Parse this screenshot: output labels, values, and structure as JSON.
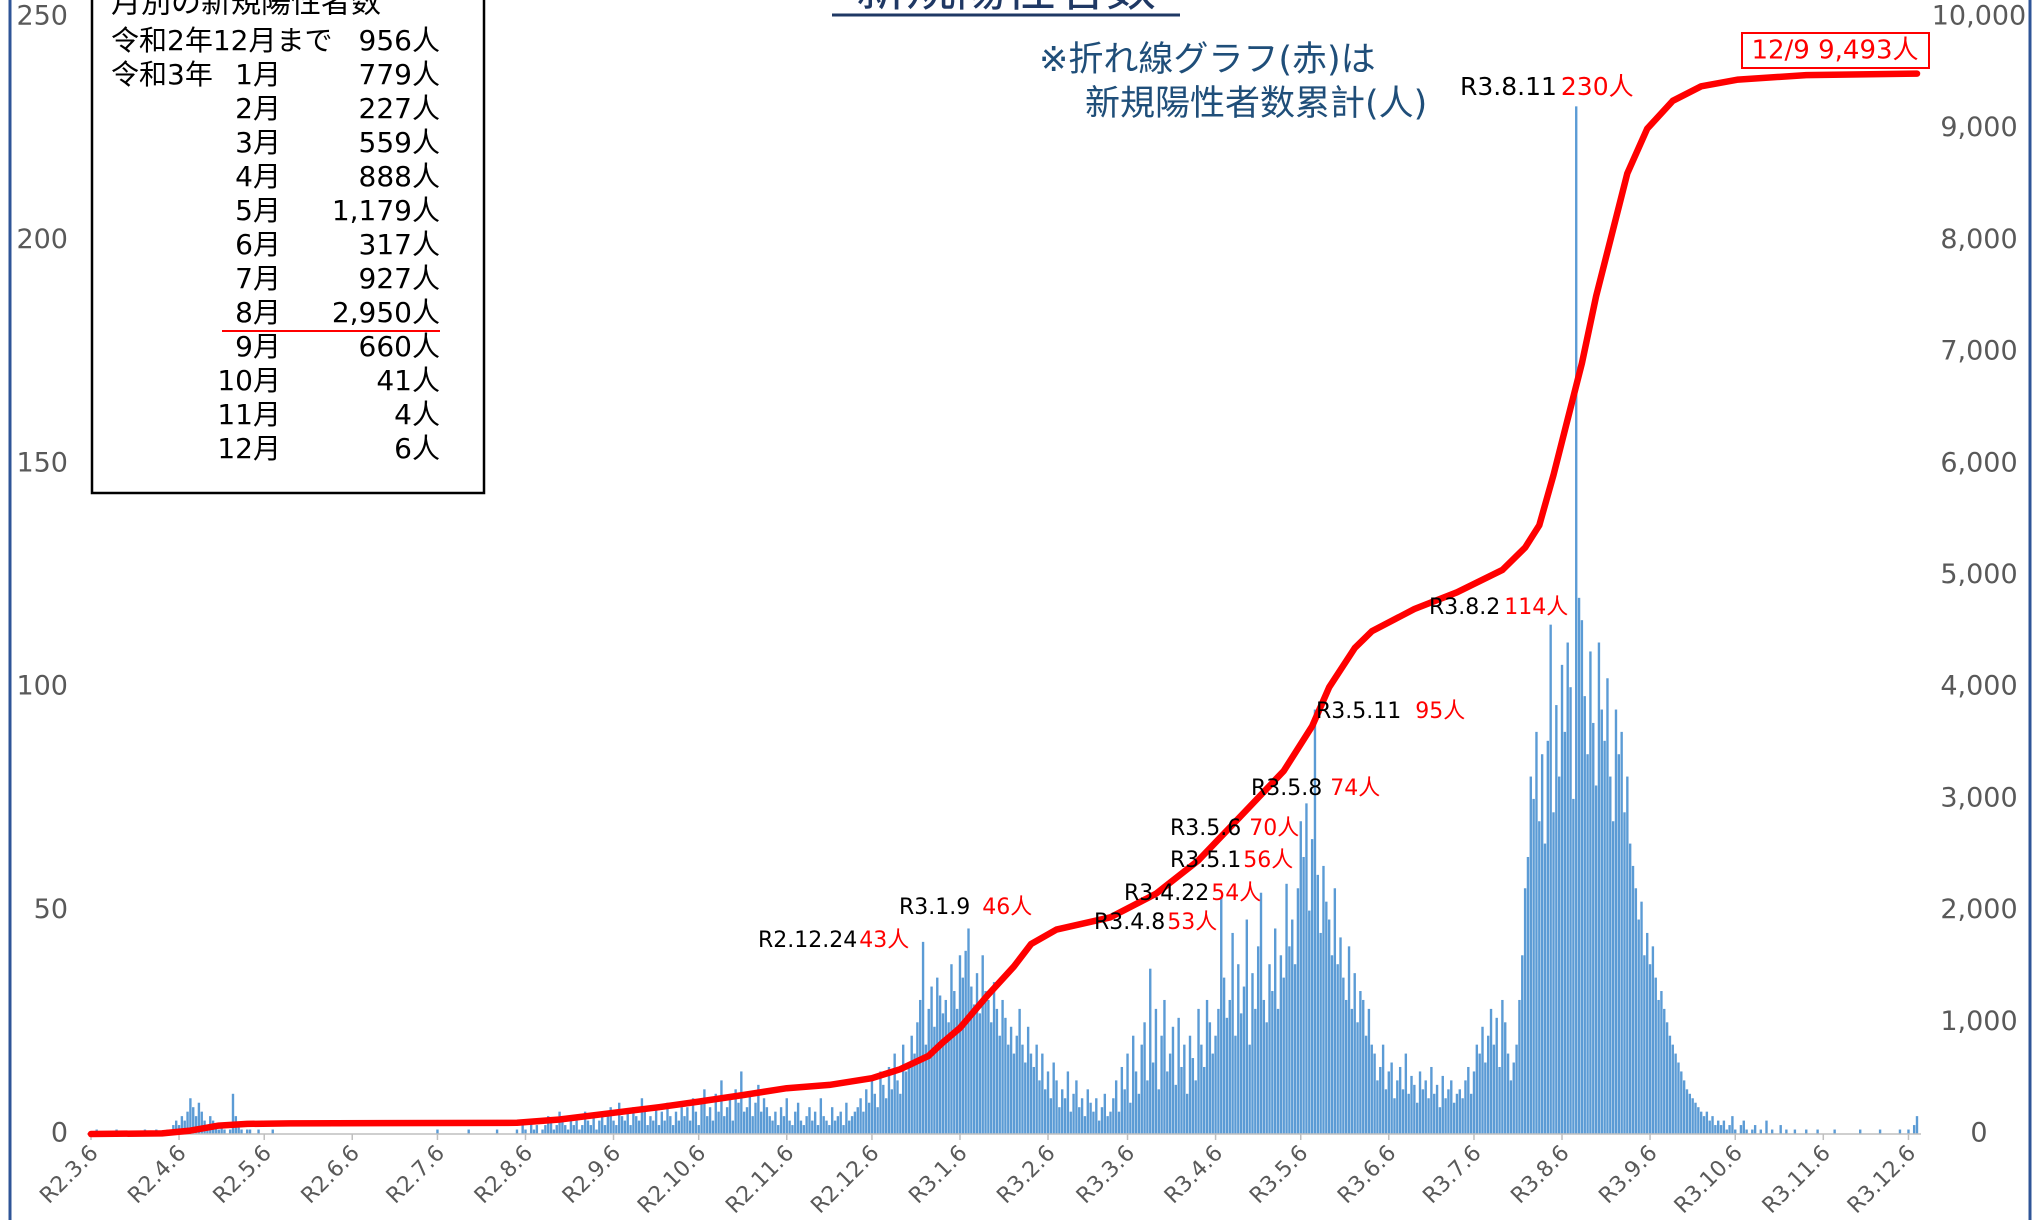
{
  "chart_data": {
    "type": "bar",
    "title": "新規陽性者数",
    "note": [
      "※折れ線グラフ(赤)は",
      "新規陽性者数累計(人)"
    ],
    "end_label": "12/9 9,493人",
    "xlim": [
      0,
      643
    ],
    "xticks": [
      {
        "value": 0,
        "label": "R2.3.6"
      },
      {
        "value": 31,
        "label": "R2.4.6"
      },
      {
        "value": 61,
        "label": "R2.5.6"
      },
      {
        "value": 92,
        "label": "R2.6.6"
      },
      {
        "value": 122,
        "label": "R2.7.6"
      },
      {
        "value": 153,
        "label": "R2.8.6"
      },
      {
        "value": 184,
        "label": "R2.9.6"
      },
      {
        "value": 214,
        "label": "R2.10.6"
      },
      {
        "value": 245,
        "label": "R2.11.6"
      },
      {
        "value": 275,
        "label": "R2.12.6"
      },
      {
        "value": 306,
        "label": "R3.1.6"
      },
      {
        "value": 337,
        "label": "R3.2.6"
      },
      {
        "value": 365,
        "label": "R3.3.6"
      },
      {
        "value": 396,
        "label": "R3.4.6"
      },
      {
        "value": 426,
        "label": "R3.5.6"
      },
      {
        "value": 457,
        "label": "R3.6.6"
      },
      {
        "value": 487,
        "label": "R3.7.6"
      },
      {
        "value": 518,
        "label": "R3.8.6"
      },
      {
        "value": 549,
        "label": "R3.9.6"
      },
      {
        "value": 579,
        "label": "R3.10.6"
      },
      {
        "value": 610,
        "label": "R3.11.6"
      },
      {
        "value": 640,
        "label": "R3.12.6"
      }
    ],
    "ylim": [
      0,
      250
    ],
    "yticks": [
      0,
      50,
      100,
      150,
      200,
      250
    ],
    "y2lim": [
      0,
      10000
    ],
    "y2ticks": [
      0,
      {
        "value": 1000,
        "label": "1,000"
      },
      {
        "value": 2000,
        "label": "2,000"
      },
      {
        "value": 3000,
        "label": "3,000"
      },
      {
        "value": 4000,
        "label": "4,000"
      },
      {
        "value": 5000,
        "label": "5,000"
      },
      {
        "value": 6000,
        "label": "6,000"
      },
      {
        "value": 7000,
        "label": "7,000"
      },
      {
        "value": 8000,
        "label": "8,000"
      },
      {
        "value": 9000,
        "label": "9,000"
      },
      {
        "value": 10000,
        "label": "10,000"
      }
    ],
    "grid": false,
    "series": [
      {
        "type": "bar",
        "color": "#5b9bd5",
        "values": [
          0,
          0,
          1,
          0,
          0,
          0,
          0,
          0,
          0,
          1,
          0,
          0,
          0,
          0,
          0,
          0,
          0,
          0,
          0,
          1,
          0,
          0,
          0,
          1,
          0,
          0,
          0,
          1,
          0,
          2,
          3,
          2,
          4,
          3,
          5,
          8,
          6,
          4,
          7,
          5,
          3,
          2,
          4,
          3,
          2,
          1,
          2,
          1,
          0,
          1,
          9,
          4,
          2,
          1,
          0,
          1,
          1,
          0,
          0,
          1,
          0,
          0,
          0,
          0,
          1,
          0,
          0,
          0,
          0,
          0,
          0,
          0,
          0,
          0,
          0,
          0,
          0,
          0,
          0,
          0,
          0,
          0,
          0,
          0,
          0,
          0,
          0,
          0,
          0,
          0,
          0,
          0,
          0,
          0,
          0,
          0,
          0,
          0,
          0,
          0,
          0,
          0,
          0,
          0,
          0,
          0,
          0,
          0,
          0,
          0,
          0,
          0,
          0,
          0,
          0,
          0,
          0,
          0,
          0,
          0,
          0,
          0,
          1,
          0,
          0,
          0,
          0,
          0,
          0,
          0,
          0,
          0,
          0,
          1,
          0,
          0,
          0,
          0,
          0,
          0,
          0,
          0,
          0,
          1,
          0,
          0,
          0,
          0,
          0,
          0,
          1,
          0,
          2,
          1,
          0,
          3,
          1,
          2,
          0,
          1,
          2,
          4,
          3,
          1,
          2,
          5,
          3,
          2,
          1,
          4,
          2,
          3,
          1,
          2,
          5,
          3,
          2,
          4,
          1,
          3,
          5,
          2,
          4,
          6,
          3,
          2,
          7,
          4,
          3,
          5,
          2,
          6,
          4,
          3,
          8,
          5,
          2,
          4,
          3,
          6,
          2,
          5,
          3,
          7,
          4,
          2,
          5,
          3,
          6,
          4,
          6,
          3,
          8,
          5,
          2,
          7,
          10,
          4,
          6,
          3,
          9,
          5,
          12,
          4,
          6,
          8,
          3,
          10,
          7,
          14,
          5,
          6,
          9,
          4,
          7,
          11,
          5,
          8,
          6,
          4,
          3,
          5,
          2,
          6,
          4,
          8,
          3,
          2,
          5,
          7,
          3,
          2,
          4,
          6,
          3,
          5,
          2,
          8,
          4,
          3,
          2,
          6,
          3,
          4,
          5,
          2,
          7,
          3,
          4,
          5,
          6,
          8,
          5,
          10,
          7,
          12,
          9,
          6,
          14,
          11,
          8,
          15,
          10,
          18,
          12,
          9,
          20,
          14,
          16,
          22,
          18,
          25,
          30,
          43,
          20,
          28,
          33,
          24,
          35,
          31,
          27,
          30,
          25,
          38,
          32,
          28,
          40,
          35,
          41,
          46,
          33,
          29,
          36,
          27,
          40,
          32,
          30,
          25,
          34,
          28,
          22,
          30,
          26,
          20,
          24,
          18,
          22,
          28,
          20,
          16,
          24,
          18,
          15,
          20,
          12,
          18,
          10,
          14,
          8,
          16,
          12,
          6,
          10,
          8,
          14,
          5,
          9,
          12,
          6,
          8,
          4,
          10,
          7,
          5,
          8,
          3,
          6,
          9,
          4,
          5,
          8,
          12,
          5,
          15,
          10,
          18,
          7,
          22,
          14,
          9,
          20,
          25,
          12,
          37,
          16,
          28,
          10,
          22,
          30,
          14,
          18,
          24,
          11,
          26,
          15,
          20,
          9,
          22,
          17,
          12,
          28,
          20,
          15,
          30,
          25,
          18,
          22,
          28,
          53,
          35,
          26,
          30,
          45,
          22,
          38,
          27,
          33,
          48,
          20,
          36,
          28,
          42,
          54,
          30,
          25,
          38,
          32,
          46,
          28,
          40,
          35,
          56,
          42,
          48,
          38,
          55,
          70,
          62,
          74,
          50,
          66,
          95,
          58,
          45,
          60,
          52,
          48,
          40,
          55,
          38,
          44,
          35,
          30,
          42,
          28,
          36,
          25,
          32,
          30,
          22,
          28,
          20,
          18,
          12,
          15,
          20,
          10,
          14,
          16,
          8,
          12,
          15,
          10,
          18,
          9,
          13,
          11,
          7,
          14,
          10,
          12,
          8,
          15,
          9,
          11,
          6,
          13,
          8,
          10,
          12,
          7,
          9,
          10,
          8,
          12,
          15,
          9,
          14,
          20,
          18,
          24,
          16,
          22,
          28,
          20,
          26,
          15,
          30,
          25,
          18,
          12,
          16,
          20,
          30,
          40,
          55,
          62,
          80,
          75,
          90,
          70,
          85,
          65,
          88,
          114,
          72,
          96,
          80,
          105,
          90,
          110,
          100,
          75,
          230,
          120,
          115,
          98,
          85,
          108,
          92,
          78,
          110,
          95,
          88,
          102,
          80,
          70,
          95,
          85,
          90,
          72,
          80,
          65,
          60,
          55,
          48,
          52,
          40,
          45,
          38,
          42,
          35,
          30,
          32,
          28,
          25,
          22,
          20,
          18,
          16,
          14,
          12,
          10,
          9,
          8,
          7,
          6,
          5,
          4,
          5,
          3,
          4,
          2,
          3,
          2,
          3,
          1,
          2,
          4,
          1,
          0,
          2,
          3,
          1,
          0,
          1,
          2,
          0,
          1,
          0,
          3,
          0,
          1,
          0,
          0,
          2,
          0,
          1,
          0,
          0,
          1,
          0,
          0,
          0,
          1,
          0,
          0,
          0,
          1,
          0,
          0,
          0,
          0,
          0,
          1,
          0,
          0,
          0,
          0,
          0,
          0,
          0,
          0,
          1,
          0,
          0,
          0,
          0,
          0,
          0,
          1,
          0,
          0,
          0,
          0,
          0,
          0,
          1,
          0,
          0,
          1,
          0,
          2,
          4
        ]
      },
      {
        "type": "line",
        "axis": "y2",
        "color": "#ff0000",
        "x": [
          0,
          25,
          35,
          45,
          55,
          70,
          150,
          165,
          184,
          200,
          214,
          230,
          245,
          260,
          275,
          285,
          295,
          300,
          306,
          316,
          325,
          331,
          340,
          359,
          375,
          390,
          405,
          420,
          430,
          436,
          445,
          451,
          466,
          481,
          497,
          505,
          510,
          515,
          520,
          525,
          530,
          535,
          541,
          548,
          557,
          567,
          580,
          604,
          643
        ],
        "values": [
          0,
          5,
          30,
          75,
          90,
          95,
          100,
          130,
          190,
          240,
          290,
          350,
          410,
          440,
          500,
          580,
          700,
          820,
          950,
          1250,
          1500,
          1700,
          1830,
          1940,
          2150,
          2450,
          2850,
          3250,
          3650,
          4000,
          4350,
          4500,
          4700,
          4850,
          5050,
          5250,
          5450,
          5900,
          6400,
          6900,
          7500,
          8000,
          8600,
          9000,
          9250,
          9380,
          9440,
          9480,
          9493
        ]
      }
    ],
    "annotations": [
      {
        "date": "R2.12.24",
        "label": "43人",
        "x": 293
      },
      {
        "date": "R3.1.9",
        "label": "46人",
        "x": 309
      },
      {
        "date": "R3.4.8",
        "label": "53人",
        "x": 398
      },
      {
        "date": "R3.4.22",
        "label": "54人",
        "x": 412
      },
      {
        "date": "R3.5.1",
        "label": "56人",
        "x": 421
      },
      {
        "date": "R3.5.6",
        "label": "70人",
        "x": 426
      },
      {
        "date": "R3.5.8",
        "label": "74人",
        "x": 428
      },
      {
        "date": "R3.5.11",
        "label": "95人",
        "x": 431
      },
      {
        "date": "R3.8.2",
        "label": "114人",
        "x": 514
      },
      {
        "date": "R3.8.11",
        "label": "230人",
        "x": 523
      }
    ],
    "monthly_table": {
      "title": "月別の新規陽性者数",
      "rows": [
        {
          "label": "令和2年12月まで",
          "count": "956人"
        },
        {
          "year": "令和3年",
          "month": "1月",
          "count": "779人"
        },
        {
          "month": "2月",
          "count": "227人"
        },
        {
          "month": "3月",
          "count": "559人"
        },
        {
          "month": "4月",
          "count": "888人"
        },
        {
          "month": "5月",
          "count": "1,179人"
        },
        {
          "month": "6月",
          "count": "317人"
        },
        {
          "month": "7月",
          "count": "927人"
        },
        {
          "month": "8月",
          "count": "2,950人",
          "color": "#ff0000"
        },
        {
          "month": "9月",
          "count": "660人"
        },
        {
          "month": "10月",
          "count": "41人"
        },
        {
          "month": "11月",
          "count": "4人"
        },
        {
          "month": "12月",
          "count": "6人"
        }
      ]
    }
  }
}
